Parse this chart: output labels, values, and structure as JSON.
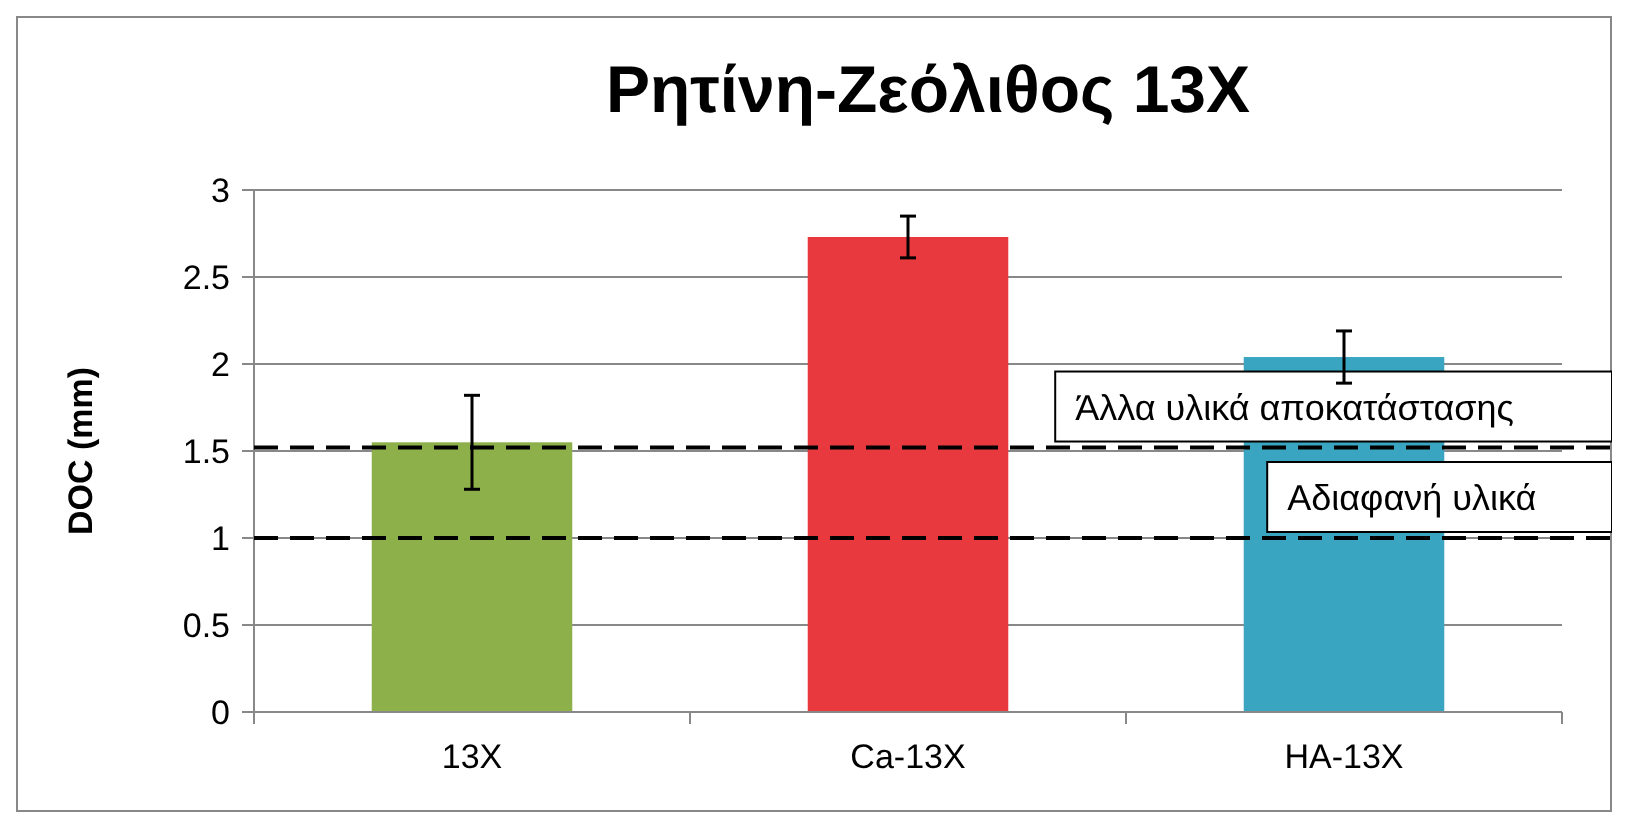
{
  "chart_data": {
    "type": "bar",
    "title": "Ρητίνη-Ζεόλιθος 13X",
    "ylabel": "DOC (mm)",
    "categories": [
      "13X",
      "Ca-13X",
      "HA-13X"
    ],
    "values": [
      1.55,
      2.73,
      2.04
    ],
    "colors": [
      "#8db04a",
      "#e8393f",
      "#3aa5c0"
    ],
    "errors": [
      0.27,
      0.12,
      0.15
    ],
    "ylim": [
      0,
      3
    ],
    "yticks": [
      0,
      0.5,
      1,
      1.5,
      2,
      2.5,
      3
    ],
    "grid": "y",
    "ref_lines": [
      {
        "axis": "y",
        "value": 1.52,
        "label": "Άλλα υλικά αποκατάστασης",
        "color": "#000000",
        "line_style": "dashed"
      },
      {
        "axis": "y",
        "value": 1,
        "label": "Αδιαφανή υλικά",
        "color": "#000000",
        "line_style": "dashed"
      }
    ]
  }
}
